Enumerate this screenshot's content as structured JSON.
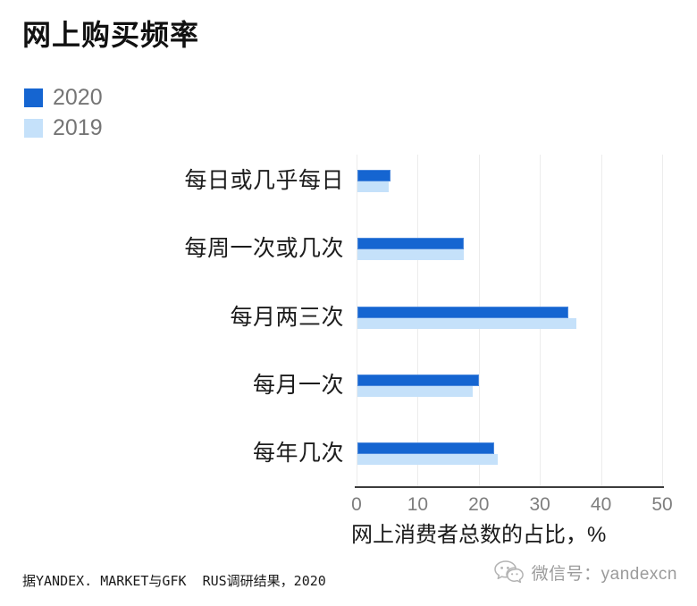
{
  "chart_data": {
    "type": "bar",
    "orientation": "horizontal",
    "title": "网上购买频率",
    "categories": [
      "每日或几乎每日",
      "每周一次或几次",
      "每月两三次",
      "每月一次",
      "每年几次"
    ],
    "series": [
      {
        "name": "2020",
        "color": "#1565D1",
        "values": [
          5.4,
          17.4,
          34.5,
          19.9,
          22.4
        ]
      },
      {
        "name": "2019",
        "color": "#C5E1FA",
        "values": [
          5.1,
          17.4,
          35.8,
          18.9,
          22.9
        ]
      }
    ],
    "xlabel": "网上消费者总数的占比，%",
    "xlim": [
      0,
      50
    ],
    "xticks": [
      0,
      10,
      20,
      30,
      40,
      50
    ],
    "legend_position": "top-left",
    "grid": "vertical-gridlines"
  },
  "footer": {
    "source": "据YANDEX. MARKET与GFK  RUS调研结果，2020",
    "wechat_label": "微信号：yandexcn"
  },
  "icons": {
    "wechat_icon": "wechat-double-chat-bubbles"
  }
}
